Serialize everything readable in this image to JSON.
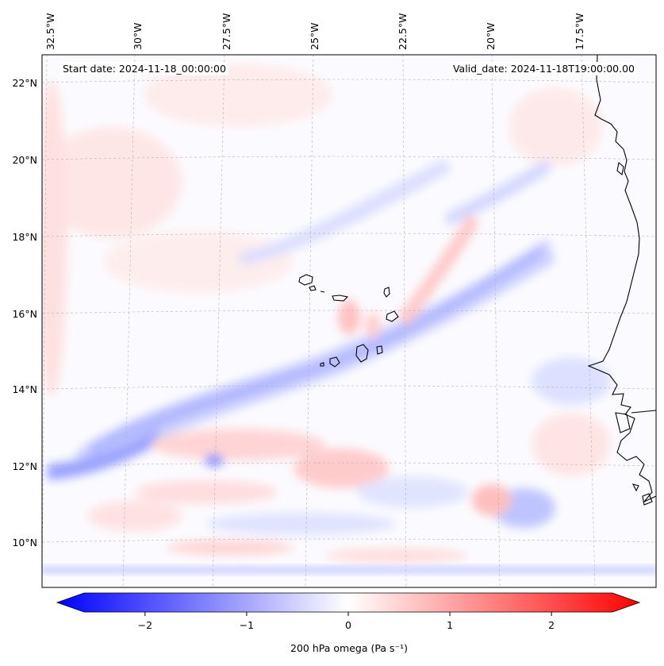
{
  "header": {
    "start_date": "Start date: 2024-11-18_00:00:00",
    "valid_date": "Valid_date: 2024-11-18T19:00:00.00"
  },
  "map": {
    "lon_labels": [
      "32.5°W",
      "30°W",
      "27.5°W",
      "25°W",
      "22.5°W",
      "20°W",
      "17.5°W"
    ],
    "lat_labels": [
      "22°N",
      "20°N",
      "18°N",
      "16°N",
      "14°N",
      "12°N",
      "10°N"
    ],
    "gridlines": true,
    "features": [
      "Cape Verde islands",
      "West African coastline"
    ]
  },
  "colorbar": {
    "min": -2.6,
    "max": 2.6,
    "ticks": [
      -2,
      -1,
      0,
      1,
      2
    ],
    "tick_labels": [
      "−2",
      "−1",
      "0",
      "1",
      "2"
    ],
    "label": "200 hPa omega (Pa s⁻¹)",
    "colormap": "bwr",
    "color_low": "#0000ff",
    "color_mid": "#ffffff",
    "color_high": "#ff0000",
    "extend": "both"
  }
}
